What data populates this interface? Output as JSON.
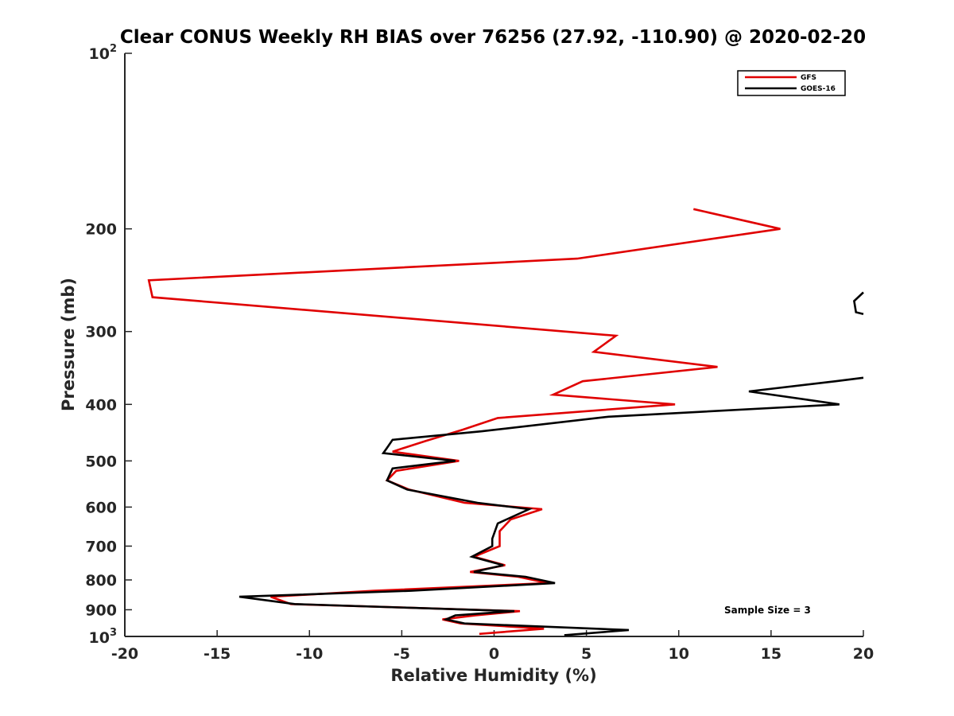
{
  "chart_data": {
    "type": "line",
    "title": "Clear CONUS Weekly RH BIAS over 76256 (27.92, -110.90) @ 2020-02-20",
    "xlabel": "Relative Humidity (%)",
    "ylabel": "Pressure (mb)",
    "xlim": [
      -20,
      20
    ],
    "ylim": [
      100,
      1000
    ],
    "yscale": "log",
    "y_reversed": true,
    "xticks": [
      -20,
      -15,
      -10,
      -5,
      0,
      5,
      10,
      15,
      20
    ],
    "xtick_labels": [
      "-20",
      "-15",
      "-10",
      "-5",
      "0",
      "5",
      "10",
      "15",
      "20"
    ],
    "yticks": [
      200,
      300,
      400,
      500,
      600,
      700,
      800,
      900
    ],
    "ytick_labels": [
      "200",
      "300",
      "400",
      "500",
      "600",
      "700",
      "800",
      "900"
    ],
    "yextreme_labels": {
      "top": {
        "base": "10",
        "exp": "2"
      },
      "bottom": {
        "base": "10",
        "exp": "3"
      }
    },
    "legend": {
      "position": "top-right",
      "entries": [
        "GFS",
        "GOES-16"
      ]
    },
    "annotation": "Sample Size = 3",
    "series": [
      {
        "name": "GFS",
        "color": "#e00000",
        "x": [
          10.8,
          15.5,
          4.5,
          -18.7,
          -18.5,
          6.6,
          5.4,
          12.1,
          4.8,
          3.2,
          9.8,
          0.2,
          -1.7,
          -3.7,
          -5.5,
          -1.9,
          -5.3,
          -5.8,
          -4.6,
          -1.6,
          2.6,
          0.9,
          0.3,
          0.3,
          -1.1,
          0.6,
          -1.3,
          1.3,
          2.9,
          -6.5,
          -12.1,
          -11.0,
          1.4,
          -1.0,
          -2.8,
          -1.8,
          2.7,
          -0.8
        ],
        "y": [
          185,
          200,
          225,
          245,
          262,
          305,
          325,
          345,
          365,
          385,
          400,
          422,
          442,
          462,
          482,
          500,
          520,
          540,
          560,
          590,
          605,
          630,
          660,
          700,
          730,
          755,
          775,
          790,
          810,
          835,
          855,
          880,
          905,
          920,
          935,
          950,
          970,
          990
        ]
      },
      {
        "name": "GOES-16",
        "color": "#000000",
        "segments": [
          {
            "x": [
              20.0,
              19.5,
              19.6,
              20.0
            ],
            "y": [
              257,
              266,
              278,
              280
            ]
          },
          {
            "x": [
              20.0,
              18.5,
              13.8,
              18.7,
              6.2,
              -0.7,
              -5.5,
              -5.8,
              -6.0,
              -2.1,
              -5.5,
              -5.8,
              -4.7,
              -0.9,
              1.9,
              0.2,
              -0.1,
              -0.1,
              -1.2,
              0.5,
              -1.1,
              1.7,
              3.3,
              -4.5,
              -13.8,
              -10.8,
              1.1,
              -2.1,
              -2.6,
              -1.6,
              7.3,
              3.8
            ],
            "y": [
              360,
              365,
              380,
              400,
              420,
              445,
              460,
              475,
              485,
              500,
              515,
              540,
              560,
              590,
              605,
              640,
              680,
              700,
              730,
              755,
              775,
              790,
              810,
              835,
              855,
              880,
              905,
              920,
              935,
              950,
              975,
              995
            ]
          }
        ]
      }
    ]
  }
}
